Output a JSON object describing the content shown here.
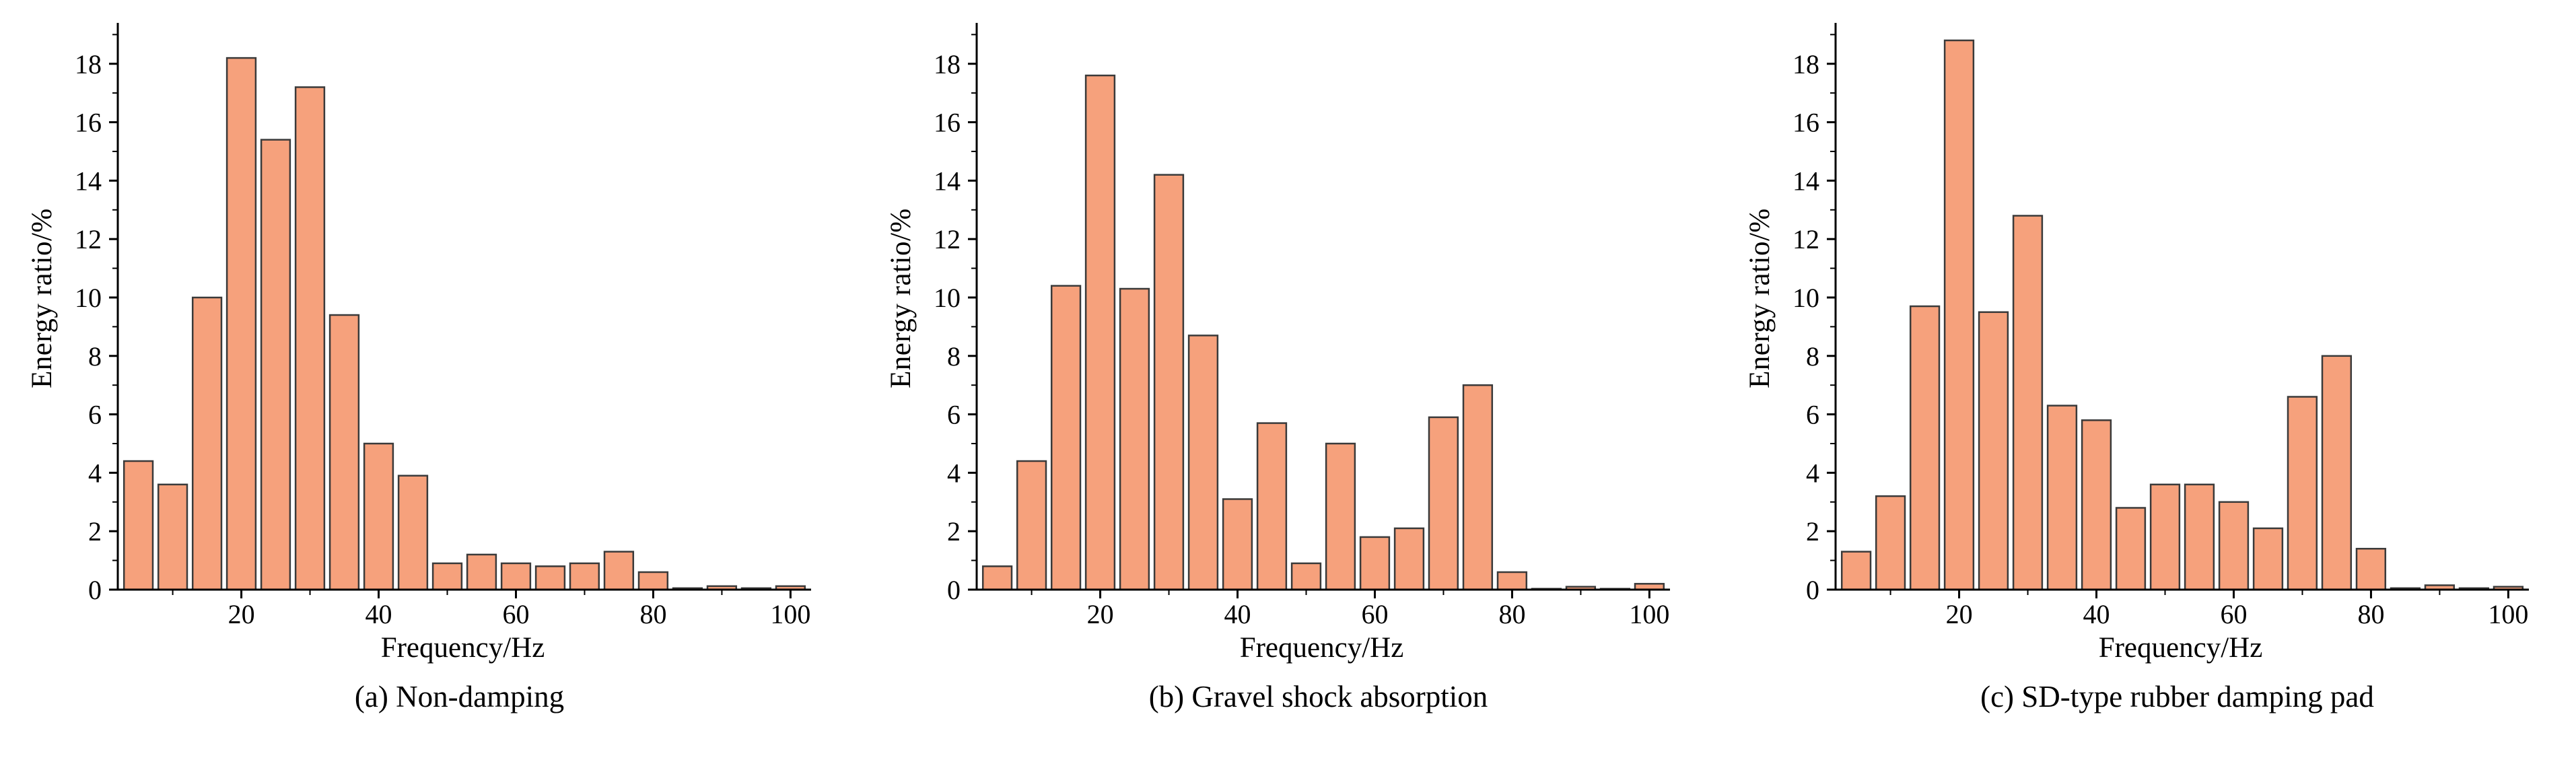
{
  "figure": {
    "bar_fill": "#f6a17c",
    "bar_edge": "#3a3a3a",
    "axis_color": "#000000"
  },
  "chart_data": [
    {
      "type": "bar",
      "title": "(a) Non-damping",
      "xlabel": "Frequency/Hz",
      "ylabel": "Energy ratio/%",
      "x": [
        5,
        10,
        15,
        20,
        25,
        30,
        35,
        40,
        45,
        50,
        55,
        60,
        65,
        70,
        75,
        80,
        85,
        90,
        95,
        100
      ],
      "values": [
        4.4,
        3.6,
        10.0,
        18.2,
        15.4,
        17.2,
        9.4,
        5.0,
        3.9,
        0.9,
        1.2,
        0.9,
        0.8,
        0.9,
        1.3,
        0.6,
        0.05,
        0.12,
        0.05,
        0.12
      ],
      "xlim": [
        2,
        103
      ],
      "ylim": [
        0,
        19.4
      ],
      "xticks": [
        20,
        40,
        60,
        80,
        100
      ],
      "xminorticks": [
        10,
        30,
        50,
        70,
        90
      ],
      "yticks": [
        0,
        2,
        4,
        6,
        8,
        10,
        12,
        14,
        16,
        18
      ],
      "yminorticks": [
        1,
        3,
        5,
        7,
        9,
        11,
        13,
        15,
        17,
        19
      ],
      "bar_width": 4.2,
      "grid": false,
      "legend": null
    },
    {
      "type": "bar",
      "title": "(b) Gravel shock absorption",
      "xlabel": "Frequency/Hz",
      "ylabel": "Energy ratio/%",
      "x": [
        5,
        10,
        15,
        20,
        25,
        30,
        35,
        40,
        45,
        50,
        55,
        60,
        65,
        70,
        75,
        80,
        85,
        90,
        95,
        100
      ],
      "values": [
        0.8,
        4.4,
        10.4,
        17.6,
        10.3,
        14.2,
        8.7,
        3.1,
        5.7,
        0.9,
        5.0,
        1.8,
        2.1,
        5.9,
        7.0,
        0.6,
        0.03,
        0.1,
        0.03,
        0.2
      ],
      "xlim": [
        2,
        103
      ],
      "ylim": [
        0,
        19.4
      ],
      "xticks": [
        20,
        40,
        60,
        80,
        100
      ],
      "xminorticks": [
        10,
        30,
        50,
        70,
        90
      ],
      "yticks": [
        0,
        2,
        4,
        6,
        8,
        10,
        12,
        14,
        16,
        18
      ],
      "yminorticks": [
        1,
        3,
        5,
        7,
        9,
        11,
        13,
        15,
        17,
        19
      ],
      "bar_width": 4.2,
      "grid": false,
      "legend": null
    },
    {
      "type": "bar",
      "title": "(c) SD-type rubber damping pad",
      "xlabel": "Frequency/Hz",
      "ylabel": "Energy ratio/%",
      "x": [
        5,
        10,
        15,
        20,
        25,
        30,
        35,
        40,
        45,
        50,
        55,
        60,
        65,
        70,
        75,
        80,
        85,
        90,
        95,
        100
      ],
      "values": [
        1.3,
        3.2,
        9.7,
        18.8,
        9.5,
        12.8,
        6.3,
        5.8,
        2.8,
        3.6,
        3.6,
        3.0,
        2.1,
        6.6,
        8.0,
        1.4,
        0.05,
        0.15,
        0.05,
        0.1
      ],
      "xlim": [
        2,
        103
      ],
      "ylim": [
        0,
        19.4
      ],
      "xticks": [
        20,
        40,
        60,
        80,
        100
      ],
      "xminorticks": [
        10,
        30,
        50,
        70,
        90
      ],
      "yticks": [
        0,
        2,
        4,
        6,
        8,
        10,
        12,
        14,
        16,
        18
      ],
      "yminorticks": [
        1,
        3,
        5,
        7,
        9,
        11,
        13,
        15,
        17,
        19
      ],
      "bar_width": 4.2,
      "grid": false,
      "legend": null
    }
  ]
}
